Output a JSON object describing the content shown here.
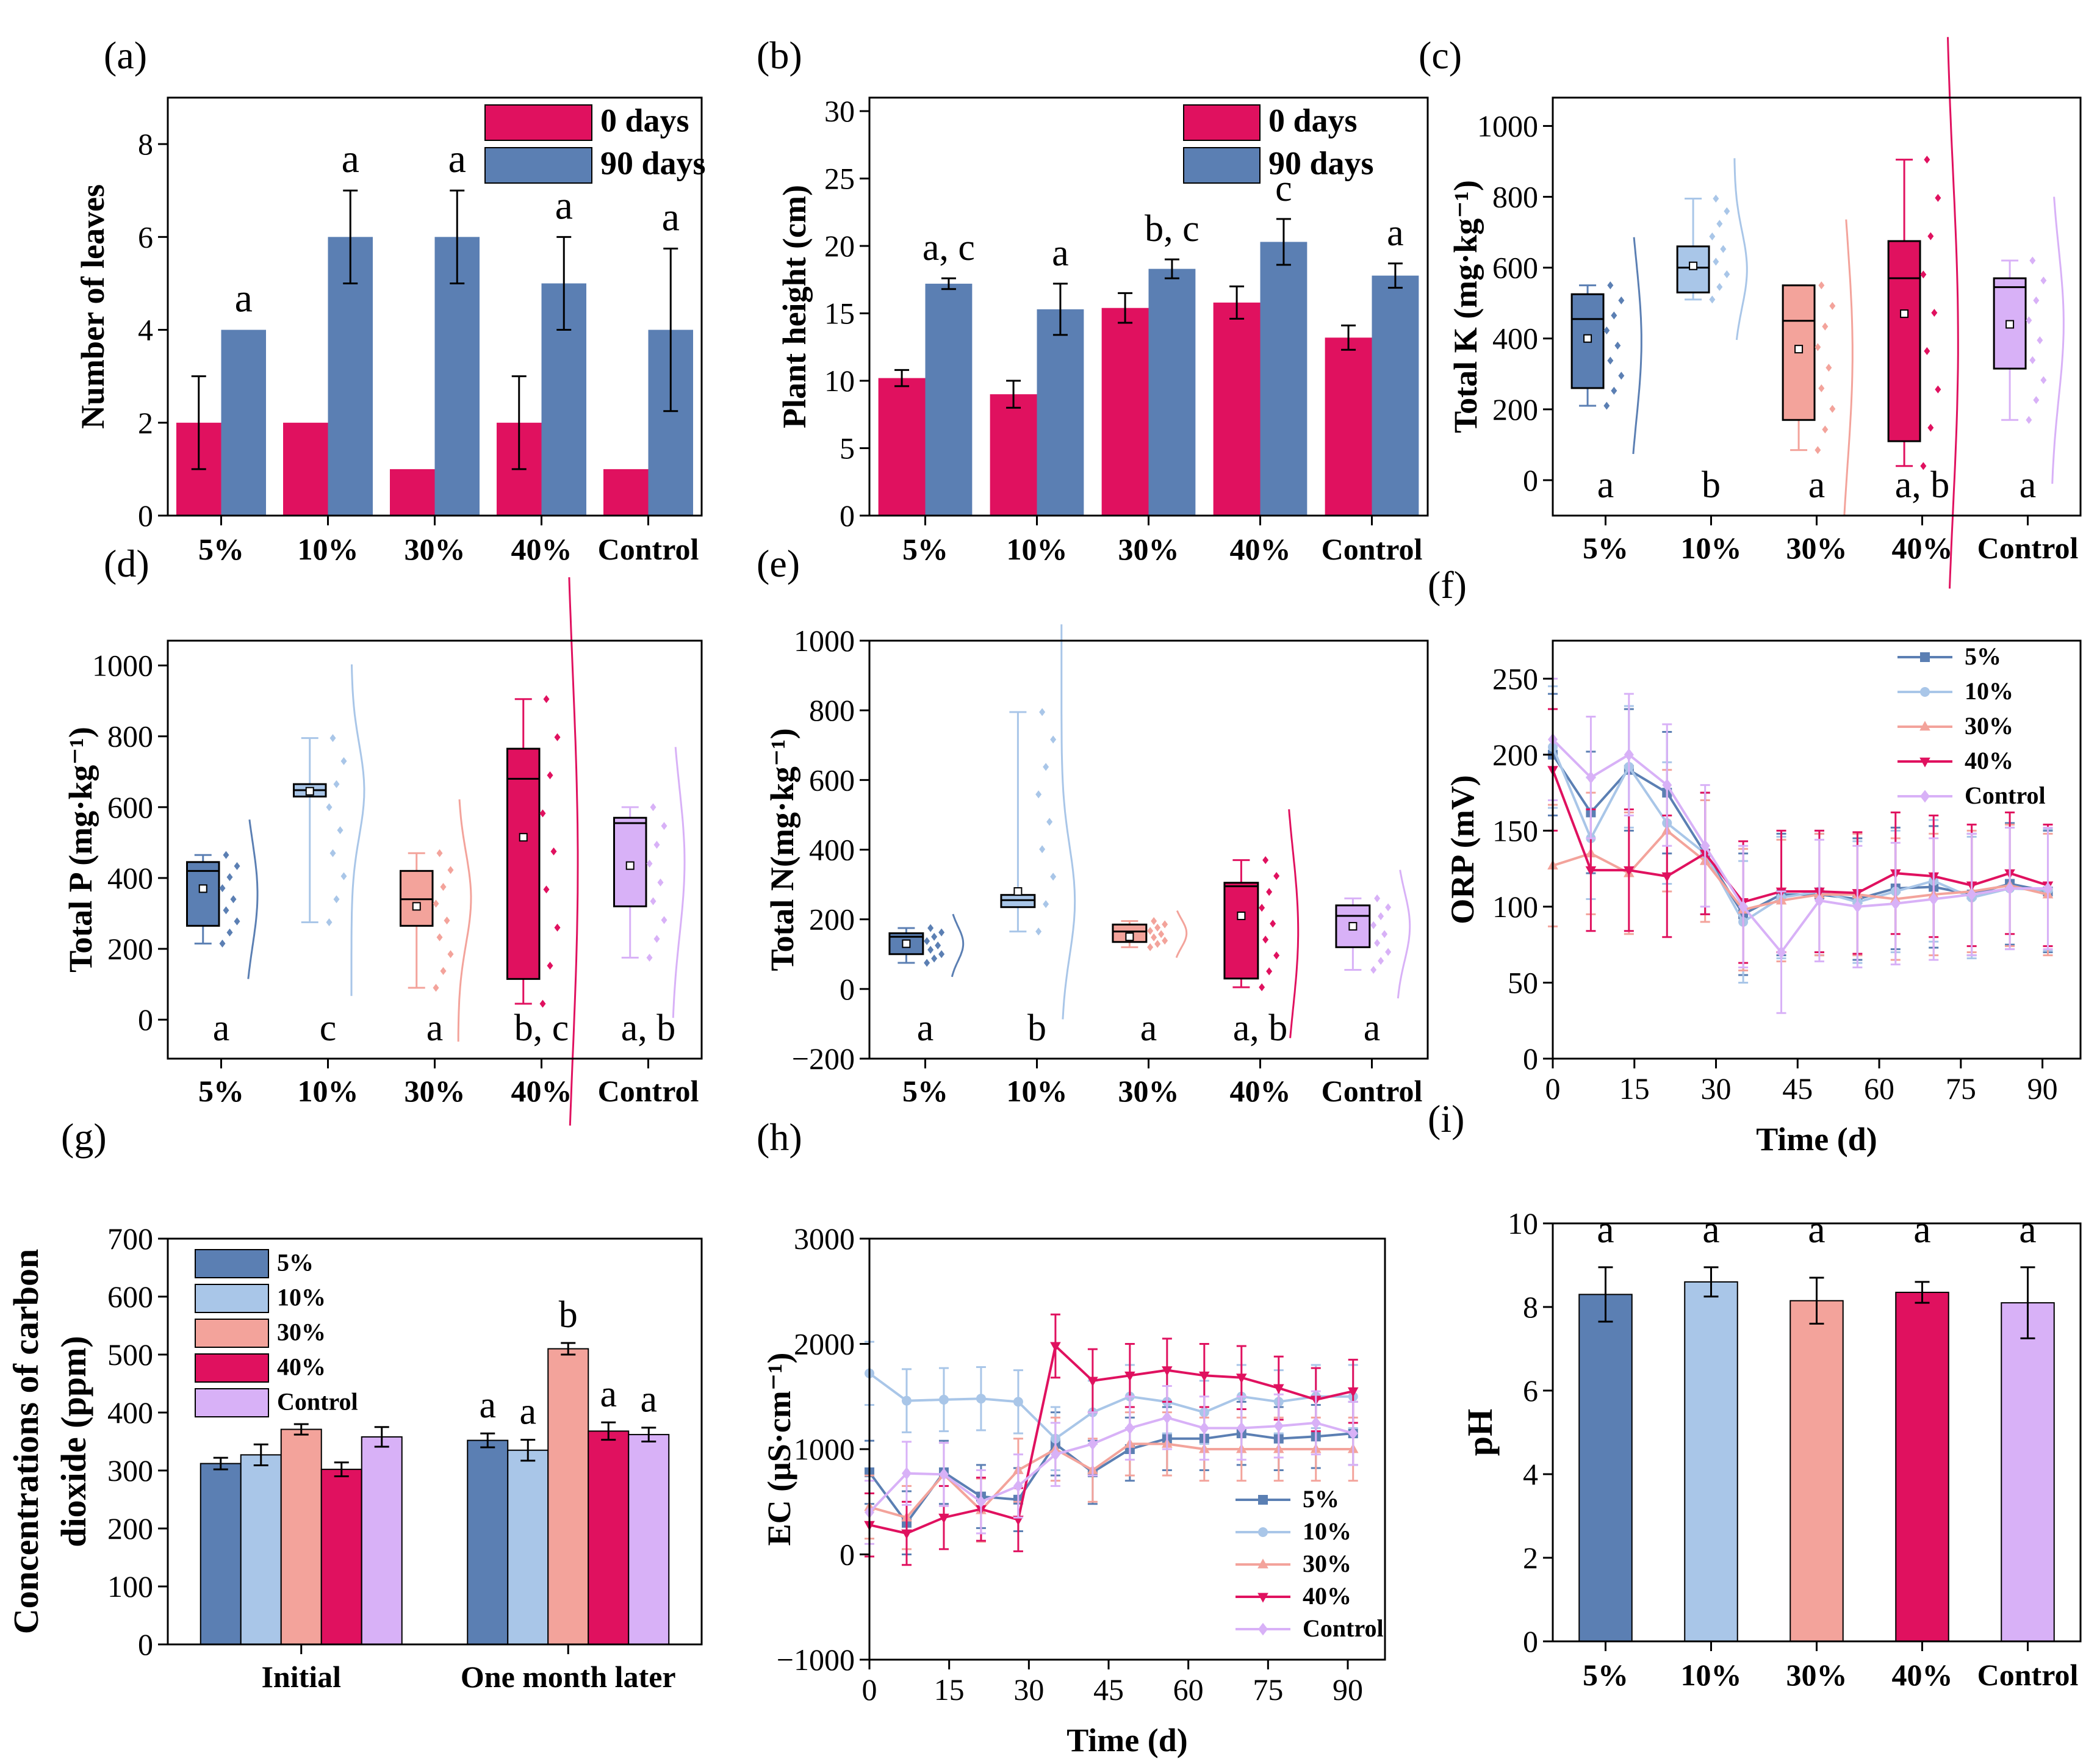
{
  "colors": {
    "dark_blue": "#5b7fb3",
    "light_blue": "#a9c6e8",
    "salmon": "#f3a39b",
    "crimson": "#e0115f",
    "lilac": "#d8b1f7",
    "red_bar": "#e0115f",
    "blue_bar": "#5b7fb3"
  },
  "chart_data": [
    {
      "panel": "(a)",
      "type": "bar",
      "categories": [
        "5%",
        "10%",
        "30%",
        "40%",
        "Control"
      ],
      "ylabel": "Number of leaves",
      "ylim": [
        0,
        9
      ],
      "yticks": [
        0,
        2,
        4,
        6,
        8
      ],
      "series": [
        {
          "name": "0 days",
          "color": "#e0115f",
          "values": [
            2,
            2,
            1,
            2,
            1
          ],
          "errors": [
            1,
            0,
            0,
            1,
            0
          ]
        },
        {
          "name": "90 days",
          "color": "#5b7fb3",
          "values": [
            4,
            6,
            6,
            5,
            4
          ],
          "errors": [
            0,
            1,
            1,
            1,
            1.75
          ]
        }
      ],
      "letters": [
        "a",
        "a",
        "a",
        "a",
        "a"
      ]
    },
    {
      "panel": "(b)",
      "type": "bar",
      "categories": [
        "5%",
        "10%",
        "30%",
        "40%",
        "Control"
      ],
      "ylabel": "Plant height (cm)",
      "ylim": [
        0,
        31
      ],
      "yticks": [
        0,
        5,
        10,
        15,
        20,
        25,
        30
      ],
      "series": [
        {
          "name": "0 days",
          "color": "#e0115f",
          "values": [
            10.2,
            9.0,
            15.4,
            15.8,
            13.2
          ],
          "errors": [
            0.6,
            1.0,
            1.1,
            1.2,
            0.9
          ]
        },
        {
          "name": "90 days",
          "color": "#5b7fb3",
          "values": [
            17.2,
            15.3,
            18.3,
            20.3,
            17.8
          ],
          "errors": [
            0.4,
            1.9,
            0.7,
            1.7,
            0.9
          ]
        }
      ],
      "letters": [
        "a, c",
        "a",
        "b, c",
        "c",
        "a"
      ]
    },
    {
      "panel": "(c)",
      "type": "box",
      "categories": [
        "5%",
        "10%",
        "30%",
        "40%",
        "Control"
      ],
      "ylabel": "Total K (mg·kg⁻¹)",
      "ylim": [
        -100,
        1080
      ],
      "yticks": [
        0,
        200,
        400,
        600,
        800,
        1000
      ],
      "colors": [
        "#5b7fb3",
        "#a9c6e8",
        "#f3a39b",
        "#e0115f",
        "#d8b1f7"
      ],
      "boxes": [
        {
          "q1": 260,
          "median": 455,
          "q3": 525,
          "min": 210,
          "max": 550,
          "mean": 400
        },
        {
          "q1": 530,
          "median": 600,
          "q3": 660,
          "min": 510,
          "max": 795,
          "mean": 605
        },
        {
          "q1": 170,
          "median": 450,
          "q3": 550,
          "min": 85,
          "max": 550,
          "mean": 370
        },
        {
          "q1": 110,
          "median": 570,
          "q3": 675,
          "min": 40,
          "max": 905,
          "mean": 470
        },
        {
          "q1": 315,
          "median": 545,
          "q3": 570,
          "min": 170,
          "max": 620,
          "mean": 440
        }
      ],
      "letters": [
        "a",
        "b",
        "a",
        "a, b",
        "a"
      ]
    },
    {
      "panel": "(d)",
      "type": "box",
      "categories": [
        "5%",
        "10%",
        "30%",
        "40%",
        "Control"
      ],
      "ylabel": "Total P (mg·kg⁻¹)",
      "ylim": [
        -110,
        1070
      ],
      "yticks": [
        0,
        200,
        400,
        600,
        800,
        1000
      ],
      "colors": [
        "#5b7fb3",
        "#a9c6e8",
        "#f3a39b",
        "#e0115f",
        "#d8b1f7"
      ],
      "boxes": [
        {
          "q1": 265,
          "median": 420,
          "q3": 445,
          "min": 215,
          "max": 465,
          "mean": 370
        },
        {
          "q1": 630,
          "median": 648,
          "q3": 665,
          "min": 275,
          "max": 795,
          "mean": 645
        },
        {
          "q1": 265,
          "median": 340,
          "q3": 420,
          "min": 90,
          "max": 470,
          "mean": 320
        },
        {
          "q1": 115,
          "median": 680,
          "q3": 765,
          "min": 45,
          "max": 905,
          "mean": 515
        },
        {
          "q1": 320,
          "median": 555,
          "q3": 570,
          "min": 175,
          "max": 600,
          "mean": 435
        }
      ],
      "letters": [
        "a",
        "c",
        "a",
        "b, c",
        "a, b"
      ]
    },
    {
      "panel": "(e)",
      "type": "box",
      "categories": [
        "5%",
        "10%",
        "30%",
        "40%",
        "Control"
      ],
      "ylabel": "Total N(mg·kg⁻¹)",
      "ylim": [
        -200,
        1000
      ],
      "yticks": [
        -200,
        0,
        200,
        400,
        600,
        800,
        1000
      ],
      "colors": [
        "#5b7fb3",
        "#a9c6e8",
        "#f3a39b",
        "#e0115f",
        "#d8b1f7"
      ],
      "boxes": [
        {
          "q1": 100,
          "median": 150,
          "q3": 160,
          "min": 75,
          "max": 175,
          "mean": 130
        },
        {
          "q1": 235,
          "median": 255,
          "q3": 270,
          "min": 165,
          "max": 795,
          "mean": 280
        },
        {
          "q1": 135,
          "median": 165,
          "q3": 185,
          "min": 120,
          "max": 195,
          "mean": 150
        },
        {
          "q1": 30,
          "median": 295,
          "q3": 305,
          "min": 5,
          "max": 370,
          "mean": 210
        },
        {
          "q1": 120,
          "median": 210,
          "q3": 240,
          "min": 55,
          "max": 260,
          "mean": 180
        }
      ],
      "letters": [
        "a",
        "b",
        "a",
        "a, b",
        "a"
      ]
    },
    {
      "panel": "(f)",
      "type": "line",
      "xlabel": "Time (d)",
      "ylabel": "ORP (mV)",
      "xlim": [
        0,
        97
      ],
      "ylim": [
        0,
        275
      ],
      "xticks": [
        0,
        15,
        30,
        45,
        60,
        75,
        90
      ],
      "yticks": [
        0,
        50,
        100,
        150,
        200,
        250
      ],
      "x": [
        0,
        7,
        14,
        21,
        28,
        35,
        42,
        49,
        56,
        63,
        70,
        77,
        84,
        91
      ],
      "series": [
        {
          "name": "5%",
          "color": "#5b7fb3",
          "marker": "square",
          "values": [
            200,
            162,
            190,
            175,
            135,
            95,
            108,
            108,
            105,
            112,
            113,
            108,
            115,
            110
          ]
        },
        {
          "name": "10%",
          "color": "#a9c6e8",
          "marker": "circle",
          "values": [
            205,
            145,
            192,
            155,
            135,
            90,
            106,
            110,
            103,
            110,
            117,
            106,
            112,
            111
          ]
        },
        {
          "name": "30%",
          "color": "#f3a39b",
          "marker": "triangle-up",
          "values": [
            127,
            135,
            122,
            150,
            130,
            98,
            104,
            108,
            108,
            105,
            108,
            110,
            114,
            108
          ]
        },
        {
          "name": "40%",
          "color": "#e0115f",
          "marker": "triangle-down",
          "values": [
            190,
            124,
            124,
            120,
            135,
            103,
            110,
            110,
            109,
            122,
            120,
            114,
            122,
            114
          ]
        },
        {
          "name": "Control",
          "color": "#d8b1f7",
          "marker": "diamond",
          "values": [
            210,
            185,
            200,
            180,
            140,
            100,
            70,
            104,
            100,
            102,
            105,
            108,
            112,
            112
          ]
        }
      ],
      "error": 40
    },
    {
      "panel": "(g)",
      "type": "bar",
      "categories": [
        "Initial",
        "One month later"
      ],
      "ylabel_lines": [
        "Concentrations of carbon",
        "dioxide (ppm)"
      ],
      "ylim": [
        0,
        700
      ],
      "yticks": [
        0,
        100,
        200,
        300,
        400,
        500,
        600,
        700
      ],
      "series": [
        {
          "name": "5%",
          "color": "#5b7fb3",
          "values": [
            312,
            352
          ],
          "errors": [
            10,
            12
          ]
        },
        {
          "name": "10%",
          "color": "#a9c6e8",
          "values": [
            327,
            335
          ],
          "errors": [
            18,
            18
          ]
        },
        {
          "name": "30%",
          "color": "#f3a39b",
          "values": [
            371,
            510
          ],
          "errors": [
            9,
            10
          ]
        },
        {
          "name": "40%",
          "color": "#e0115f",
          "values": [
            302,
            368
          ],
          "errors": [
            12,
            15
          ]
        },
        {
          "name": "Control",
          "color": "#d8b1f7",
          "values": [
            358,
            362
          ],
          "errors": [
            17,
            12
          ]
        }
      ],
      "letters_one_month": [
        "a",
        "a",
        "b",
        "a",
        "a"
      ]
    },
    {
      "panel": "(h)",
      "type": "line",
      "xlabel": "Time (d)",
      "ylabel": "EC (μS·cm⁻¹)",
      "xlim": [
        0,
        97
      ],
      "ylim": [
        -1000,
        3000
      ],
      "xticks": [
        0,
        15,
        30,
        45,
        60,
        75,
        90
      ],
      "yticks": [
        -1000,
        0,
        1000,
        2000,
        3000
      ],
      "x": [
        0,
        7,
        14,
        21,
        28,
        35,
        42,
        49,
        56,
        63,
        70,
        77,
        84,
        91
      ],
      "series": [
        {
          "name": "5%",
          "color": "#5b7fb3",
          "marker": "square",
          "values": [
            780,
            300,
            780,
            550,
            520,
            1050,
            780,
            1000,
            1100,
            1100,
            1150,
            1100,
            1120,
            1150
          ]
        },
        {
          "name": "10%",
          "color": "#a9c6e8",
          "marker": "circle",
          "values": [
            1720,
            1460,
            1470,
            1480,
            1450,
            1100,
            1350,
            1500,
            1450,
            1350,
            1500,
            1450,
            1500,
            1500
          ]
        },
        {
          "name": "30%",
          "color": "#f3a39b",
          "marker": "triangle-up",
          "values": [
            450,
            350,
            760,
            420,
            800,
            1000,
            800,
            1050,
            1050,
            1000,
            1000,
            1000,
            1000,
            1000
          ]
        },
        {
          "name": "40%",
          "color": "#e0115f",
          "marker": "triangle-down",
          "values": [
            280,
            200,
            350,
            430,
            330,
            1980,
            1650,
            1700,
            1750,
            1700,
            1680,
            1580,
            1470,
            1550
          ]
        },
        {
          "name": "Control",
          "color": "#d8b1f7",
          "marker": "diamond",
          "values": [
            400,
            770,
            760,
            500,
            650,
            950,
            1050,
            1200,
            1300,
            1200,
            1200,
            1220,
            1250,
            1150
          ]
        }
      ],
      "error": 300
    },
    {
      "panel": "(i)",
      "type": "bar",
      "categories": [
        "5%",
        "10%",
        "30%",
        "40%",
        "Control"
      ],
      "ylabel": "pH",
      "ylim": [
        0,
        10
      ],
      "yticks": [
        0,
        2,
        4,
        6,
        8,
        10
      ],
      "colors": [
        "#5b7fb3",
        "#a9c6e8",
        "#f3a39b",
        "#e0115f",
        "#d8b1f7"
      ],
      "values": [
        8.3,
        8.6,
        8.15,
        8.35,
        8.1
      ],
      "errors": [
        0.65,
        0.35,
        0.55,
        0.25,
        0.85
      ],
      "letters": [
        "a",
        "a",
        "a",
        "a",
        "a"
      ]
    }
  ]
}
